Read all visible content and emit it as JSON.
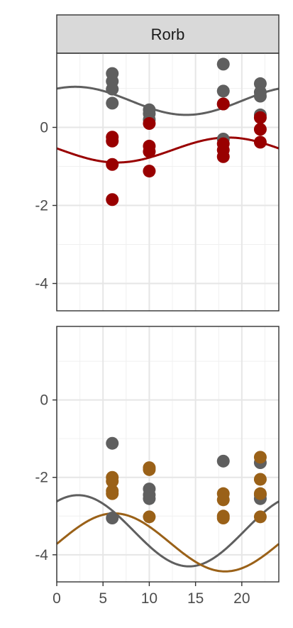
{
  "chart_data": {
    "type": "scatter",
    "strip": "Rorb",
    "xlim": [
      0,
      24
    ],
    "x_ticks": [
      0,
      5,
      10,
      15,
      20
    ],
    "y_ticks": [
      0,
      -2,
      -4
    ],
    "grid": true,
    "panels": [
      {
        "ylim": [
          -4.7,
          1.9
        ],
        "series": [
          {
            "color": "#5f5f5f",
            "curve": {
              "mesor": 0.68,
              "amplitude": 0.36,
              "peak": 2.0,
              "period": 24
            },
            "points": [
              [
                6,
                1.38
              ],
              [
                6,
                1.18
              ],
              [
                6,
                0.98
              ],
              [
                6,
                0.62
              ],
              [
                10,
                0.45
              ],
              [
                10,
                0.35
              ],
              [
                10,
                0.2
              ],
              [
                18,
                1.62
              ],
              [
                18,
                0.93
              ],
              [
                18,
                0.6
              ],
              [
                18,
                -0.3
              ],
              [
                22,
                1.12
              ],
              [
                22,
                0.9
              ],
              [
                22,
                0.8
              ],
              [
                22,
                0.32
              ]
            ]
          },
          {
            "color": "#990000",
            "curve": {
              "mesor": -0.58,
              "amplitude": 0.32,
              "peak": 18.5,
              "period": 24
            },
            "points": [
              [
                6,
                -0.25
              ],
              [
                6,
                -0.35
              ],
              [
                6,
                -0.95
              ],
              [
                6,
                -1.85
              ],
              [
                10,
                0.1
              ],
              [
                10,
                -0.48
              ],
              [
                10,
                -0.62
              ],
              [
                10,
                -1.12
              ],
              [
                18,
                0.6
              ],
              [
                18,
                -0.42
              ],
              [
                18,
                -0.58
              ],
              [
                18,
                -0.75
              ],
              [
                22,
                0.25
              ],
              [
                22,
                -0.05
              ],
              [
                22,
                -0.38
              ]
            ]
          }
        ]
      },
      {
        "ylim": [
          -4.7,
          1.9
        ],
        "series": [
          {
            "color": "#5f5f5f",
            "curve": {
              "mesor": -3.38,
              "amplitude": 0.92,
              "peak": 2.3,
              "period": 24
            },
            "points": [
              [
                6,
                -1.12
              ],
              [
                6,
                -3.05
              ],
              [
                10,
                -2.3
              ],
              [
                10,
                -2.45
              ],
              [
                10,
                -2.55
              ],
              [
                18,
                -1.58
              ],
              [
                22,
                -1.62
              ],
              [
                22,
                -2.45
              ],
              [
                22,
                -2.55
              ]
            ]
          },
          {
            "color": "#9a6118",
            "curve": {
              "mesor": -3.68,
              "amplitude": 0.75,
              "peak": 6.2,
              "period": 24
            },
            "points": [
              [
                6,
                -2.0
              ],
              [
                6,
                -2.1
              ],
              [
                6,
                -2.35
              ],
              [
                6,
                -2.42
              ],
              [
                10,
                -1.75
              ],
              [
                10,
                -1.8
              ],
              [
                10,
                -3.02
              ],
              [
                18,
                -2.42
              ],
              [
                18,
                -2.58
              ],
              [
                18,
                -3.0
              ],
              [
                18,
                -3.05
              ],
              [
                22,
                -1.48
              ],
              [
                22,
                -2.05
              ],
              [
                22,
                -2.42
              ],
              [
                22,
                -3.02
              ]
            ]
          }
        ]
      }
    ]
  }
}
